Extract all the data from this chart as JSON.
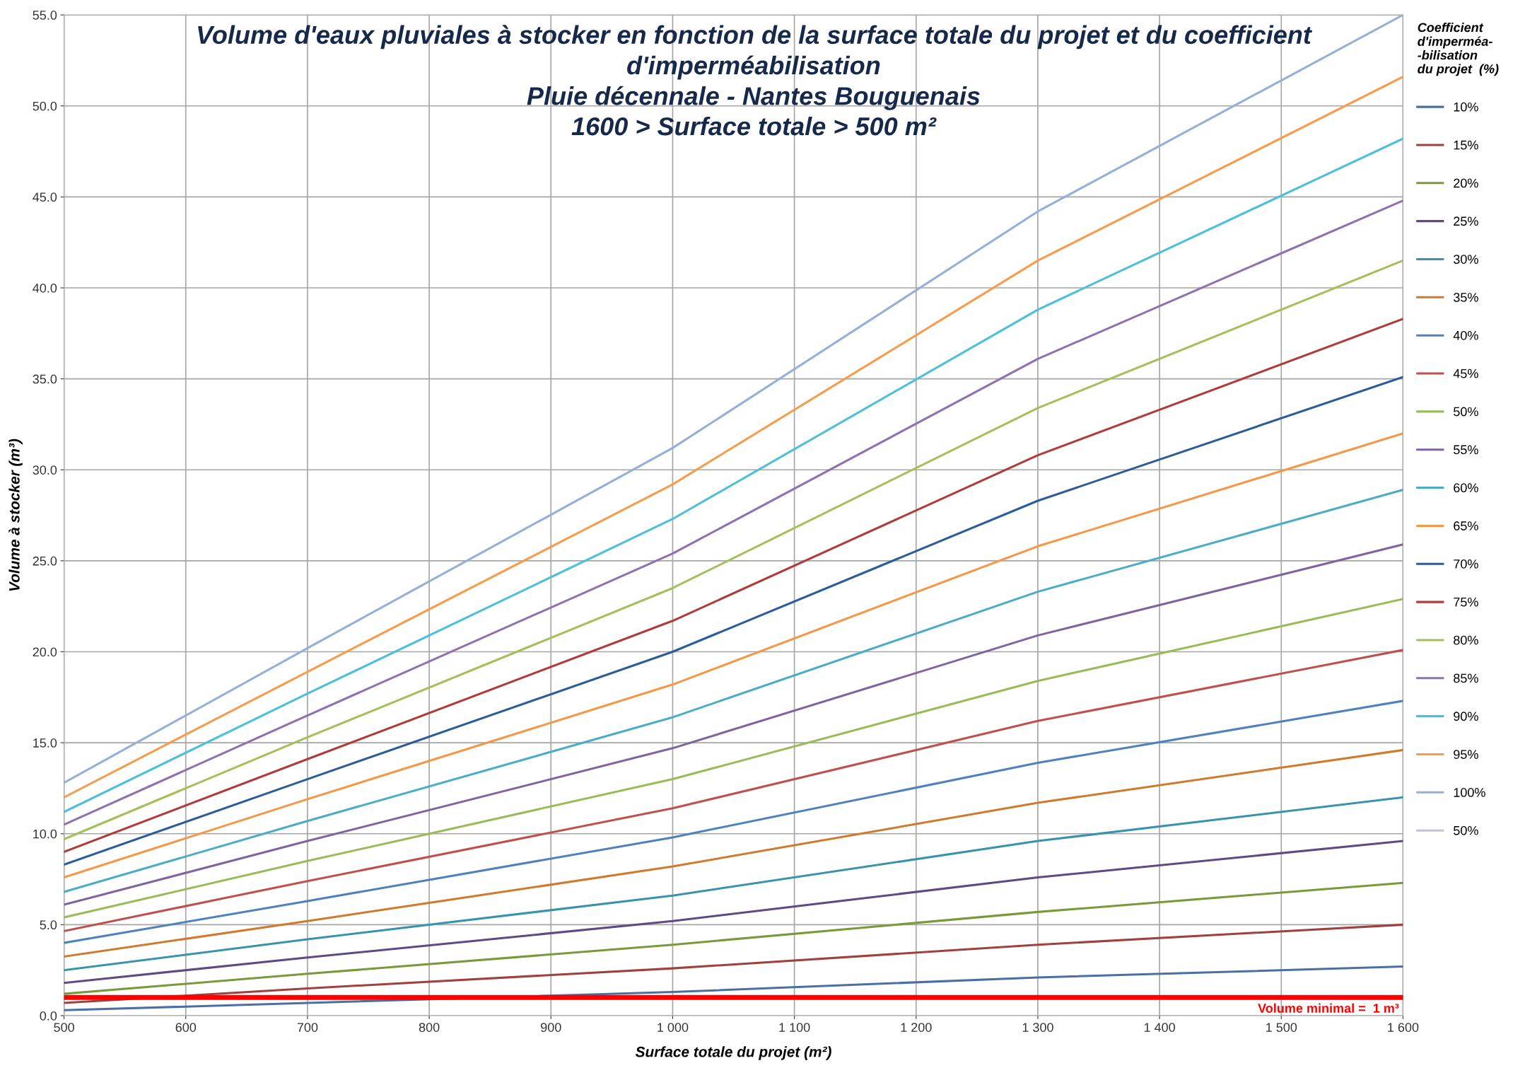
{
  "chart_data": {
    "type": "line",
    "title": "Volume d'eaux pluviales à stocker en fonction de la surface totale du projet et du coefficient\nd'imperméabilisation\nPluie décennale - Nantes Bouguenais\n1600 > Surface totale > 500 m²",
    "xlabel": "Surface totale du projet (m²)",
    "ylabel": "Volume à stocker (m³)",
    "legend_title": "Coefficient\nd'imperméa-\n-bilisation\ndu projet  (%)",
    "x": [
      500,
      700,
      1000,
      1300,
      1600
    ],
    "series": [
      {
        "name": "10%",
        "color": "#4a6fa0",
        "values": [
          0.3,
          0.7,
          1.3,
          2.1,
          2.7
        ]
      },
      {
        "name": "15%",
        "color": "#a0413e",
        "values": [
          0.7,
          1.5,
          2.6,
          3.9,
          5.0
        ]
      },
      {
        "name": "20%",
        "color": "#7a9a3a",
        "values": [
          1.2,
          2.3,
          3.9,
          5.7,
          7.3
        ]
      },
      {
        "name": "25%",
        "color": "#5f4a85",
        "values": [
          1.8,
          3.2,
          5.2,
          7.6,
          9.6
        ]
      },
      {
        "name": "30%",
        "color": "#3a93ac",
        "values": [
          2.5,
          4.2,
          6.6,
          9.6,
          12.0
        ]
      },
      {
        "name": "35%",
        "color": "#d07a2e",
        "values": [
          3.25,
          5.2,
          8.2,
          11.7,
          14.6
        ]
      },
      {
        "name": "40%",
        "color": "#4f81bd",
        "values": [
          4.0,
          6.3,
          9.8,
          13.9,
          17.3
        ]
      },
      {
        "name": "45%",
        "color": "#c0504d",
        "values": [
          4.65,
          7.4,
          11.4,
          16.2,
          20.1
        ]
      },
      {
        "name": "50%",
        "color": "#9bbb59",
        "values": [
          5.4,
          8.5,
          13.0,
          18.4,
          22.9
        ]
      },
      {
        "name": "55%",
        "color": "#8064a2",
        "values": [
          6.1,
          9.6,
          14.7,
          20.9,
          25.9
        ]
      },
      {
        "name": "60%",
        "color": "#4bacc6",
        "values": [
          6.8,
          10.7,
          16.4,
          23.3,
          28.9
        ]
      },
      {
        "name": "65%",
        "color": "#f79646",
        "values": [
          7.6,
          11.9,
          18.2,
          25.8,
          32.0
        ]
      },
      {
        "name": "70%",
        "color": "#2c5d99",
        "values": [
          8.3,
          13.0,
          20.0,
          28.3,
          35.1
        ]
      },
      {
        "name": "75%",
        "color": "#b03c3a",
        "values": [
          9.0,
          14.1,
          21.7,
          30.8,
          38.3
        ]
      },
      {
        "name": "80%",
        "color": "#a5c05a",
        "values": [
          9.7,
          15.3,
          23.5,
          33.4,
          41.5
        ]
      },
      {
        "name": "85%",
        "color": "#8c72b0",
        "values": [
          10.5,
          16.5,
          25.4,
          36.1,
          44.8
        ]
      },
      {
        "name": "90%",
        "color": "#4dc0d8",
        "values": [
          11.2,
          17.7,
          27.3,
          38.8,
          48.2
        ]
      },
      {
        "name": "95%",
        "color": "#f89c4c",
        "values": [
          12.0,
          18.9,
          29.2,
          41.5,
          51.6
        ]
      },
      {
        "name": "100%",
        "color": "#95b0d8",
        "values": [
          12.8,
          20.2,
          31.2,
          44.2,
          55.0
        ]
      },
      {
        "name": "50%",
        "color": "#c5bfdc",
        "values": [
          null,
          null,
          null,
          null,
          null
        ]
      }
    ],
    "xlim": [
      500,
      1600
    ],
    "xticks": [
      500,
      600,
      700,
      800,
      900,
      {
        "value": 1000,
        "label": "1 000"
      },
      {
        "value": 1100,
        "label": "1 100"
      },
      {
        "value": 1200,
        "label": "1 200"
      },
      {
        "value": 1300,
        "label": "1 300"
      },
      {
        "value": 1400,
        "label": "1 400"
      },
      {
        "value": 1500,
        "label": "1 500"
      },
      {
        "value": 1600,
        "label": "1 600"
      }
    ],
    "ylim": [
      0,
      55
    ],
    "yticks": [
      {
        "value": 0,
        "label": "0.0"
      },
      {
        "value": 5,
        "label": "5.0"
      },
      {
        "value": 10,
        "label": "10.0"
      },
      {
        "value": 15,
        "label": "15.0"
      },
      {
        "value": 20,
        "label": "20.0"
      },
      {
        "value": 25,
        "label": "25.0"
      },
      {
        "value": 30,
        "label": "30.0"
      },
      {
        "value": 35,
        "label": "35.0"
      },
      {
        "value": 40,
        "label": "40.0"
      },
      {
        "value": 45,
        "label": "45.0"
      },
      {
        "value": 50,
        "label": "50.0"
      },
      {
        "value": 55,
        "label": "55.0"
      }
    ],
    "ref_lines": [
      {
        "axis": "y",
        "value": 1,
        "label": "Volume minimal =  1 m³",
        "color": "#ff0000"
      }
    ],
    "grid": true,
    "legend": "right",
    "marker": "none",
    "line_style": "solid"
  }
}
